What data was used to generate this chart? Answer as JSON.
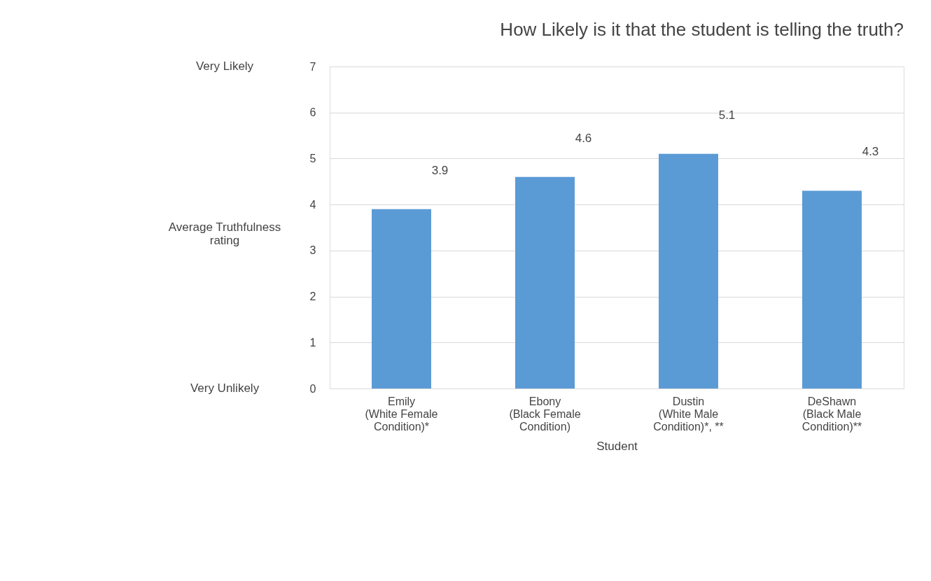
{
  "chart_data": {
    "type": "bar",
    "title": "How Likely is it that the student is telling the truth?",
    "xlabel": "Student",
    "ylabel": "Average Truthfulness rating",
    "annotations": [
      "Very Likely",
      "Very Unlikely"
    ],
    "categories": [
      "Emily\n(White Female\nCondition)*",
      "Ebony\n(Black Female\nCondition)",
      "Dustin\n(White Male\nCondition)*, **",
      "DeShawn\n(Black Male\nCondition)**"
    ],
    "values": [
      3.9,
      4.6,
      5.1,
      4.3
    ],
    "color": "#5b9bd5",
    "ylim": [
      0,
      7
    ],
    "yticks": [
      0,
      1,
      2,
      3,
      4,
      5,
      6,
      7
    ],
    "grid": "y",
    "data_labels": true
  }
}
